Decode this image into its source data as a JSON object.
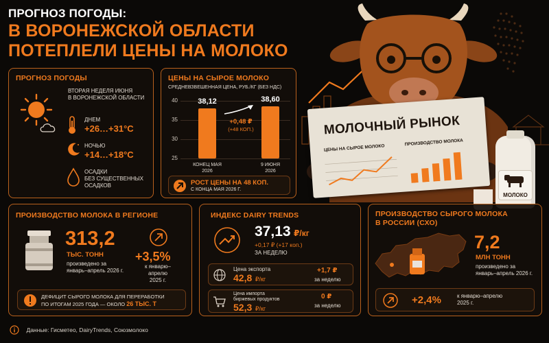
{
  "header": {
    "kicker": "ПРОГНОЗ ПОГОДЫ:",
    "headline_line1": "В ВОРОНЕЖСКОЙ ОБЛАСТИ",
    "headline_line2": "ПОТЕПЛЕЛИ ЦЕНЫ НА МОЛОКО"
  },
  "weather": {
    "title": "ПРОГНОЗ ПОГОДЫ",
    "period_line1": "ВТОРАЯ НЕДЕЛЯ ИЮНЯ",
    "period_line2": "В ВОРОНЕЖСКОЙ ОБЛАСТИ",
    "day_label": "ДНЕМ",
    "day_value": "+26…+31°C",
    "night_label": "НОЧЬЮ",
    "night_value": "+14…+18°C",
    "rain_line1": "ОСАДКИ",
    "rain_line2": "БЕЗ СУЩЕСТВЕННЫХ",
    "rain_line3": "ОСАДКОВ"
  },
  "prices": {
    "title": "ЦЕНЫ НА СЫРОЕ МОЛОКО",
    "subtitle": "СРЕДНЕВЗВЕШЕННАЯ ЦЕНА, РУБ./КГ (БЕЗ НДС)",
    "change_line1": "+0,48 ₽",
    "change_line2": "(+48 КОП.)",
    "banner_main": "РОСТ ЦЕНЫ НА 48 КОП.",
    "banner_sub": "С КОНЦА МАЯ 2026 Г."
  },
  "chart_data": {
    "type": "bar",
    "categories": [
      "КОНЕЦ МАЯ 2026",
      "9 ИЮНЯ 2026"
    ],
    "category_lines": [
      [
        "КОНЕЦ МАЯ",
        "2026"
      ],
      [
        "9 ИЮНЯ",
        "2026"
      ]
    ],
    "values": [
      38.12,
      38.6
    ],
    "value_labels": [
      "38,12",
      "38,60"
    ],
    "yticks": [
      "40",
      "35",
      "30",
      "25"
    ],
    "ylim": [
      25,
      40
    ],
    "title": "ЦЕНЫ НА СЫРОЕ МОЛОКО",
    "xlabel": "",
    "ylabel": "",
    "color": "#f07a1e"
  },
  "newspaper": {
    "masthead": "МОЛОЧНЫЙ РЫНОК",
    "left_col": "ЦЕНЫ НА СЫРОЕ МОЛОКО",
    "right_col": "ПРОИЗВОДСТВО МОЛОКА",
    "bottle_label": "МОЛОКО"
  },
  "production": {
    "title": "ПРОИЗВОДСТВО МОЛОКА В РЕГИОНЕ",
    "value": "313,2",
    "unit": "ТЫС. ТОНН",
    "desc_line1": "произведено за",
    "desc_line2": "январь–апрель 2026 г.",
    "growth": "+3,5%",
    "growth_desc_line1": "к январю–апрелю",
    "growth_desc_line2": "2025 г.",
    "deficit_line1": "ДЕФИЦИТ СЫРОГО МОЛОКА ДЛЯ ПЕРЕРАБОТКИ",
    "deficit_line2_prefix": "ПО ИТОГАМ 2025 ГОДА — ОКОЛО",
    "deficit_value": "26 ТЫС. Т"
  },
  "dairy": {
    "title": "ИНДЕКС DAIRY TRENDS",
    "value": "37,13",
    "value_unit": "₽/кг",
    "change": "+0,17 ₽ (+17 коп.)",
    "change_period": "ЗА НЕДЕЛЮ",
    "export_label": "Цена экспорта",
    "export_value": "42,8",
    "export_unit": "₽/кг",
    "export_change": "+1,7 ₽",
    "export_period": "за неделю",
    "import_label_line1": "Цена импорта",
    "import_label_line2": "биржевых продуктов",
    "import_value": "52,3",
    "import_unit": "₽/кг",
    "import_change": "0 ₽",
    "import_period": "за неделю"
  },
  "russia": {
    "title_line1": "ПРОИЗВОДСТВО СЫРОГО МОЛОКА",
    "title_line2": "В РОССИИ (СХО)",
    "value": "7,2",
    "unit": "МЛН ТОНН",
    "desc_line1": "произведено за",
    "desc_line2": "январь–апрель 2026 г.",
    "growth": "+2,4%",
    "growth_desc_line1": "к январю–апрелю",
    "growth_desc_line2": "2025 г."
  },
  "footer": {
    "source": "Данные: Гисметео, DairyTrends, Союзмолоко"
  },
  "colors": {
    "accent": "#f07a1e",
    "border": "#b9611d",
    "background": "#0b0907"
  }
}
